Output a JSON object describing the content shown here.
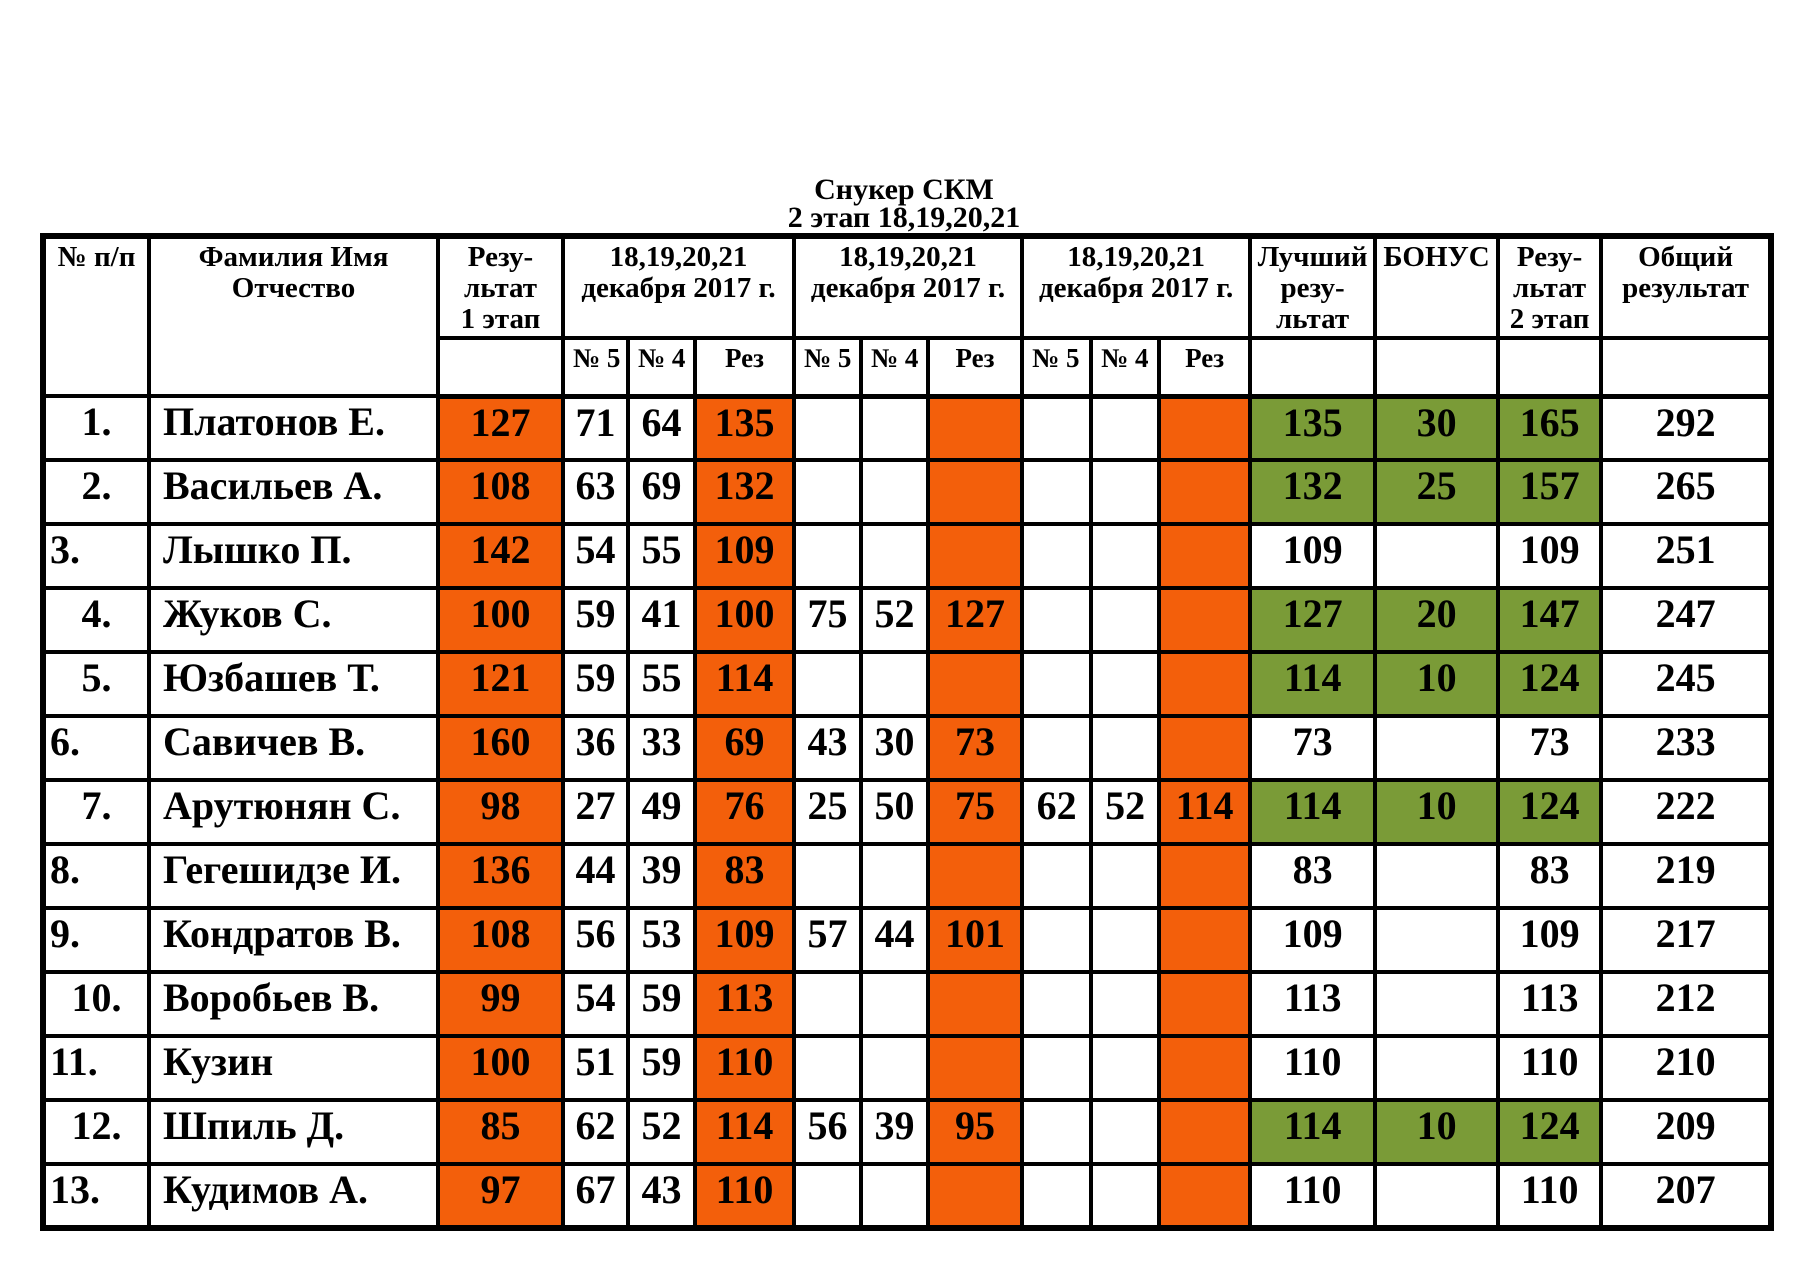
{
  "title": {
    "line1": "Снукер СКМ",
    "line2": "2 этап 18,19,20,21"
  },
  "colors": {
    "highlight_orange": "#F35F0B",
    "highlight_green": "#7A9B37",
    "border": "#000000",
    "background": "#FFFFFF"
  },
  "table": {
    "header": {
      "num": "№ п/п",
      "name": "Фамилия Имя Отчество",
      "stage1": "Резу-\nльтат\n1 этап",
      "date_group": "18,19,20,21\nдекабря 2017 г.",
      "sub": [
        "№ 5",
        "№ 4",
        "Рез"
      ],
      "best": "Лучший\nрезу-\nльтат",
      "bonus": "БОНУС",
      "stage2": "Резу-\nльтат\n2 этап",
      "total": "Общий\nрезультат"
    },
    "rows": [
      {
        "num": "1.",
        "align": "c",
        "name": "Платонов Е.",
        "r1": "127",
        "g1": [
          "71",
          "64",
          "135"
        ],
        "g2": [
          "",
          "",
          ""
        ],
        "g3": [
          "",
          "",
          ""
        ],
        "best": "135",
        "bonus": "30",
        "r2": "165",
        "total": "292",
        "hl": true
      },
      {
        "num": "2.",
        "align": "c",
        "name": "Васильев А.",
        "r1": "108",
        "g1": [
          "63",
          "69",
          "132"
        ],
        "g2": [
          "",
          "",
          ""
        ],
        "g3": [
          "",
          "",
          ""
        ],
        "best": "132",
        "bonus": "25",
        "r2": "157",
        "total": "265",
        "hl": true
      },
      {
        "num": "3.",
        "align": "l",
        "name": "Лышко П.",
        "r1": "142",
        "g1": [
          "54",
          "55",
          "109"
        ],
        "g2": [
          "",
          "",
          ""
        ],
        "g3": [
          "",
          "",
          ""
        ],
        "best": "109",
        "bonus": "",
        "r2": "109",
        "total": "251",
        "hl": false
      },
      {
        "num": "4.",
        "align": "c",
        "name": "Жуков С.",
        "r1": "100",
        "g1": [
          "59",
          "41",
          "100"
        ],
        "g2": [
          "75",
          "52",
          "127"
        ],
        "g3": [
          "",
          "",
          ""
        ],
        "best": "127",
        "bonus": "20",
        "r2": "147",
        "total": "247",
        "hl": true
      },
      {
        "num": "5.",
        "align": "c",
        "name": "Юзбашев Т.",
        "r1": "121",
        "g1": [
          "59",
          "55",
          "114"
        ],
        "g2": [
          "",
          "",
          ""
        ],
        "g3": [
          "",
          "",
          ""
        ],
        "best": "114",
        "bonus": "10",
        "r2": "124",
        "total": "245",
        "hl": true
      },
      {
        "num": "6.",
        "align": "l",
        "name": "Савичев В.",
        "r1": "160",
        "g1": [
          "36",
          "33",
          "69"
        ],
        "g2": [
          "43",
          "30",
          "73"
        ],
        "g3": [
          "",
          "",
          ""
        ],
        "best": "73",
        "bonus": "",
        "r2": "73",
        "total": "233",
        "hl": false
      },
      {
        "num": "7.",
        "align": "c",
        "name": "Арутюнян С.",
        "r1": "98",
        "g1": [
          "27",
          "49",
          "76"
        ],
        "g2": [
          "25",
          "50",
          "75"
        ],
        "g3": [
          "62",
          "52",
          "114"
        ],
        "best": "114",
        "bonus": "10",
        "r2": "124",
        "total": "222",
        "hl": true
      },
      {
        "num": "8.",
        "align": "l",
        "name": "Гегешидзе И.",
        "r1": "136",
        "g1": [
          "44",
          "39",
          "83"
        ],
        "g2": [
          "",
          "",
          ""
        ],
        "g3": [
          "",
          "",
          ""
        ],
        "best": "83",
        "bonus": "",
        "r2": "83",
        "total": "219",
        "hl": false
      },
      {
        "num": "9.",
        "align": "l",
        "name": "Кондратов В.",
        "r1": "108",
        "g1": [
          "56",
          "53",
          "109"
        ],
        "g2": [
          "57",
          "44",
          "101"
        ],
        "g3": [
          "",
          "",
          ""
        ],
        "best": "109",
        "bonus": "",
        "r2": "109",
        "total": "217",
        "hl": false
      },
      {
        "num": "10.",
        "align": "c",
        "name": "Воробьев В.",
        "r1": "99",
        "g1": [
          "54",
          "59",
          "113"
        ],
        "g2": [
          "",
          "",
          ""
        ],
        "g3": [
          "",
          "",
          ""
        ],
        "best": "113",
        "bonus": "",
        "r2": "113",
        "total": "212",
        "hl": false
      },
      {
        "num": "11.",
        "align": "l",
        "name": "Кузин",
        "r1": "100",
        "g1": [
          "51",
          "59",
          "110"
        ],
        "g2": [
          "",
          "",
          ""
        ],
        "g3": [
          "",
          "",
          ""
        ],
        "best": "110",
        "bonus": "",
        "r2": "110",
        "total": "210",
        "hl": false
      },
      {
        "num": "12.",
        "align": "c",
        "name": "Шпиль Д.",
        "r1": "85",
        "g1": [
          "62",
          "52",
          "114"
        ],
        "g2": [
          "56",
          "39",
          "95"
        ],
        "g3": [
          "",
          "",
          ""
        ],
        "best": "114",
        "bonus": "10",
        "r2": "124",
        "total": "209",
        "hl": true
      },
      {
        "num": "13.",
        "align": "l",
        "name": "Кудимов А.",
        "r1": "97",
        "g1": [
          "67",
          "43",
          "110"
        ],
        "g2": [
          "",
          "",
          ""
        ],
        "g3": [
          "",
          "",
          ""
        ],
        "best": "110",
        "bonus": "",
        "r2": "110",
        "total": "207",
        "hl": false
      }
    ]
  }
}
